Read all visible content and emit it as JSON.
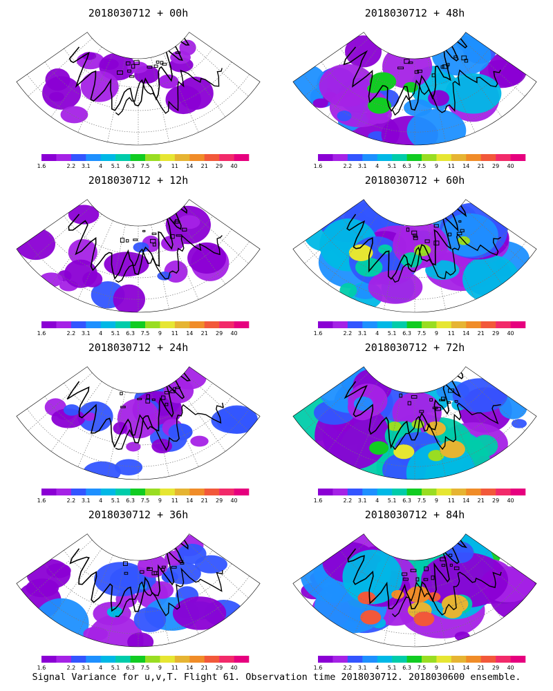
{
  "caption": "Signal Variance for u,v,T. Flight 61. Observation time 2018030712. 2018030600 ensemble.",
  "colorbar": {
    "colors": [
      "#8b00d4",
      "#a522e6",
      "#3355ff",
      "#1e90ff",
      "#00b8e6",
      "#00ccaa",
      "#11cc22",
      "#99dd22",
      "#e6e632",
      "#e6b432",
      "#f08c28",
      "#f2583a",
      "#f22a6a",
      "#e6007e"
    ],
    "labels": [
      "1.6",
      "2.2",
      "3.1",
      "4",
      "5.1",
      "6.3",
      "7.5",
      "9",
      "11",
      "14",
      "21",
      "29",
      "40"
    ]
  },
  "panels": [
    {
      "title": "2018030712 + 00h",
      "intensity": 0.05,
      "forecast_hour": 0
    },
    {
      "title": "2018030712 + 48h",
      "intensity": 0.45,
      "forecast_hour": 48
    },
    {
      "title": "2018030712 + 12h",
      "intensity": 0.12,
      "forecast_hour": 12
    },
    {
      "title": "2018030712 + 60h",
      "intensity": 0.62,
      "forecast_hour": 60
    },
    {
      "title": "2018030712 + 24h",
      "intensity": 0.22,
      "forecast_hour": 24
    },
    {
      "title": "2018030712 + 72h",
      "intensity": 0.75,
      "forecast_hour": 72
    },
    {
      "title": "2018030712 + 36h",
      "intensity": 0.32,
      "forecast_hour": 36
    },
    {
      "title": "2018030712 + 84h",
      "intensity": 0.88,
      "forecast_hour": 84
    }
  ]
}
